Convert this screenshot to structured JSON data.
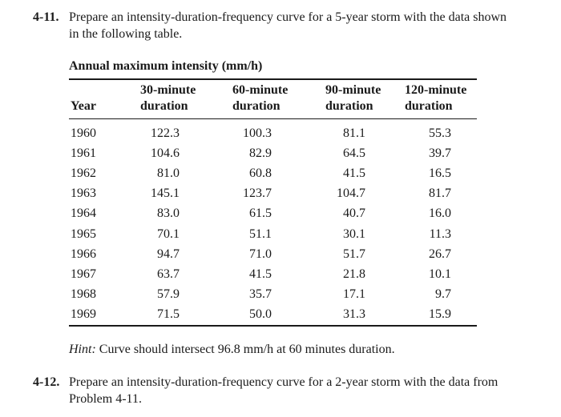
{
  "problems": [
    {
      "number": "4-11.",
      "text": "Prepare an intensity-duration-frequency curve for a 5-year storm with the data shown in the following table."
    },
    {
      "number": "4-12.",
      "text": "Prepare an intensity-duration-frequency curve for a 2-year storm with the data from Problem 4-11."
    }
  ],
  "table": {
    "caption": "Annual maximum intensity (mm/h)",
    "headers": [
      [
        "",
        "Year"
      ],
      [
        "30-minute",
        "duration"
      ],
      [
        "60-minute",
        "duration"
      ],
      [
        "90-minute",
        "duration"
      ],
      [
        "120-minute",
        "duration"
      ]
    ],
    "rows": [
      [
        "1960",
        "122.3",
        "100.3",
        "81.1",
        "55.3"
      ],
      [
        "1961",
        "104.6",
        "82.9",
        "64.5",
        "39.7"
      ],
      [
        "1962",
        "81.0",
        "60.8",
        "41.5",
        "16.5"
      ],
      [
        "1963",
        "145.1",
        "123.7",
        "104.7",
        "81.7"
      ],
      [
        "1964",
        "83.0",
        "61.5",
        "40.7",
        "16.0"
      ],
      [
        "1965",
        "70.1",
        "51.1",
        "30.1",
        "11.3"
      ],
      [
        "1966",
        "94.7",
        "71.0",
        "51.7",
        "26.7"
      ],
      [
        "1967",
        "63.7",
        "41.5",
        "21.8",
        "10.1"
      ],
      [
        "1968",
        "57.9",
        "35.7",
        "17.1",
        "9.7"
      ],
      [
        "1969",
        "71.5",
        "50.0",
        "31.3",
        "15.9"
      ]
    ]
  },
  "hint": {
    "label": "Hint:",
    "text": " Curve should intersect 96.8 mm/h at 60 minutes duration."
  }
}
